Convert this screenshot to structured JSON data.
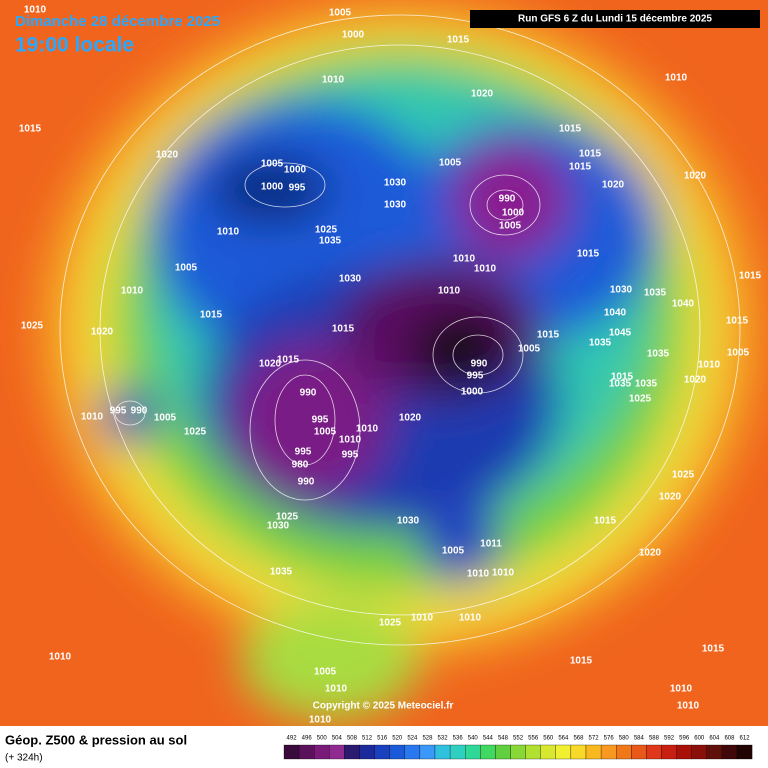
{
  "header": {
    "date": "Dimanche 28 décembre 2025",
    "time": "19:00 locale",
    "run": "Run GFS 6 Z du Lundi 15 décembre 2025"
  },
  "map": {
    "pressure_labels": [
      "1010",
      "1005",
      "1000",
      "1015",
      "1010",
      "1020",
      "1010",
      "1015",
      "1020",
      "1015",
      "1005",
      "1000",
      "1000",
      "995",
      "1030",
      "1005",
      "1015",
      "1015",
      "1020",
      "1020",
      "1030",
      "990",
      "1000",
      "1005",
      "1010",
      "1025",
      "1035",
      "1005",
      "1030",
      "1010",
      "1010",
      "1015",
      "1010",
      "1015",
      "1010",
      "1030",
      "1035",
      "1040",
      "1025",
      "1020",
      "1015",
      "1040",
      "1045",
      "1015",
      "1035",
      "1015",
      "1015",
      "990",
      "1005",
      "1035",
      "1005",
      "1015",
      "1020",
      "1010",
      "995",
      "1015",
      "1035",
      "1035",
      "1020",
      "1000",
      "1025",
      "990",
      "1010",
      "995",
      "990",
      "1005",
      "1025",
      "995",
      "1005",
      "1010",
      "1010",
      "995",
      "1020",
      "995",
      "980",
      "990",
      "1025",
      "1020",
      "1025",
      "1030",
      "1030",
      "1015",
      "1011",
      "1005",
      "1010",
      "1010",
      "1020",
      "1035",
      "1025",
      "1010",
      "1010",
      "1015",
      "1015",
      "1010",
      "1005",
      "1010",
      "1010",
      "1010",
      "1010"
    ]
  },
  "footer": {
    "title": "Géop. Z500 & pression au sol",
    "subtitle": "(+ 324h)",
    "copyright": "Copyright © 2025 Meteociel.fr"
  },
  "colorbar": {
    "ticks": [
      492,
      496,
      500,
      504,
      508,
      512,
      516,
      520,
      524,
      528,
      532,
      536,
      540,
      544,
      548,
      552,
      556,
      560,
      564,
      568,
      572,
      576,
      580,
      584,
      588,
      592,
      596,
      600,
      604,
      608,
      612
    ]
  }
}
